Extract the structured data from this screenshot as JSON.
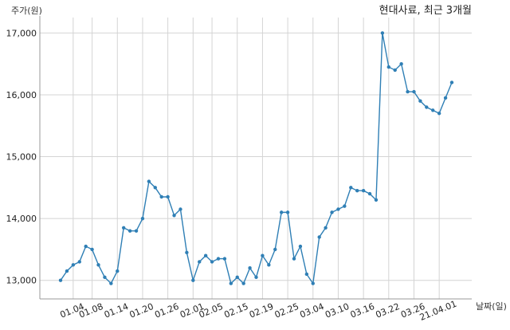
{
  "chart_data": {
    "type": "line",
    "title": "현대사료, 최근 3개월",
    "xlabel": "날짜(일)",
    "ylabel": "주가(원)",
    "ylim": [
      12700,
      17250
    ],
    "y_ticks": [
      13000,
      14000,
      15000,
      16000,
      17000
    ],
    "y_tick_labels": [
      "13,000",
      "14,000",
      "15,000",
      "16,000",
      "17,000"
    ],
    "x_tick_labels": [
      "01.04",
      "01.08",
      "01.14",
      "01.20",
      "01.26",
      "02.01",
      "02.05",
      "02.15",
      "02.19",
      "02.25",
      "03.04",
      "03.10",
      "03.16",
      "03.22",
      "03.26",
      "21.04.01"
    ],
    "x_tick_indices": [
      2,
      5,
      9,
      13,
      17,
      21,
      24,
      28,
      32,
      36,
      40,
      44,
      48,
      52,
      56,
      60
    ],
    "grid": true,
    "color": "#2f7fb5",
    "values": [
      13000,
      13150,
      13250,
      13300,
      13550,
      13500,
      13250,
      13050,
      12950,
      13150,
      13850,
      13800,
      13800,
      14000,
      14600,
      14500,
      14350,
      14350,
      14050,
      14150,
      13450,
      13000,
      13300,
      13400,
      13300,
      13350,
      13350,
      12950,
      13050,
      12950,
      13200,
      13050,
      13400,
      13250,
      13500,
      14100,
      14100,
      13350,
      13550,
      13100,
      12950,
      13700,
      13850,
      14100,
      14150,
      14200,
      14500,
      14450,
      14450,
      14400,
      14300,
      17000,
      16450,
      16400,
      16500,
      16050,
      16050,
      15900,
      15800,
      15750,
      15700,
      15950,
      16200
    ]
  }
}
